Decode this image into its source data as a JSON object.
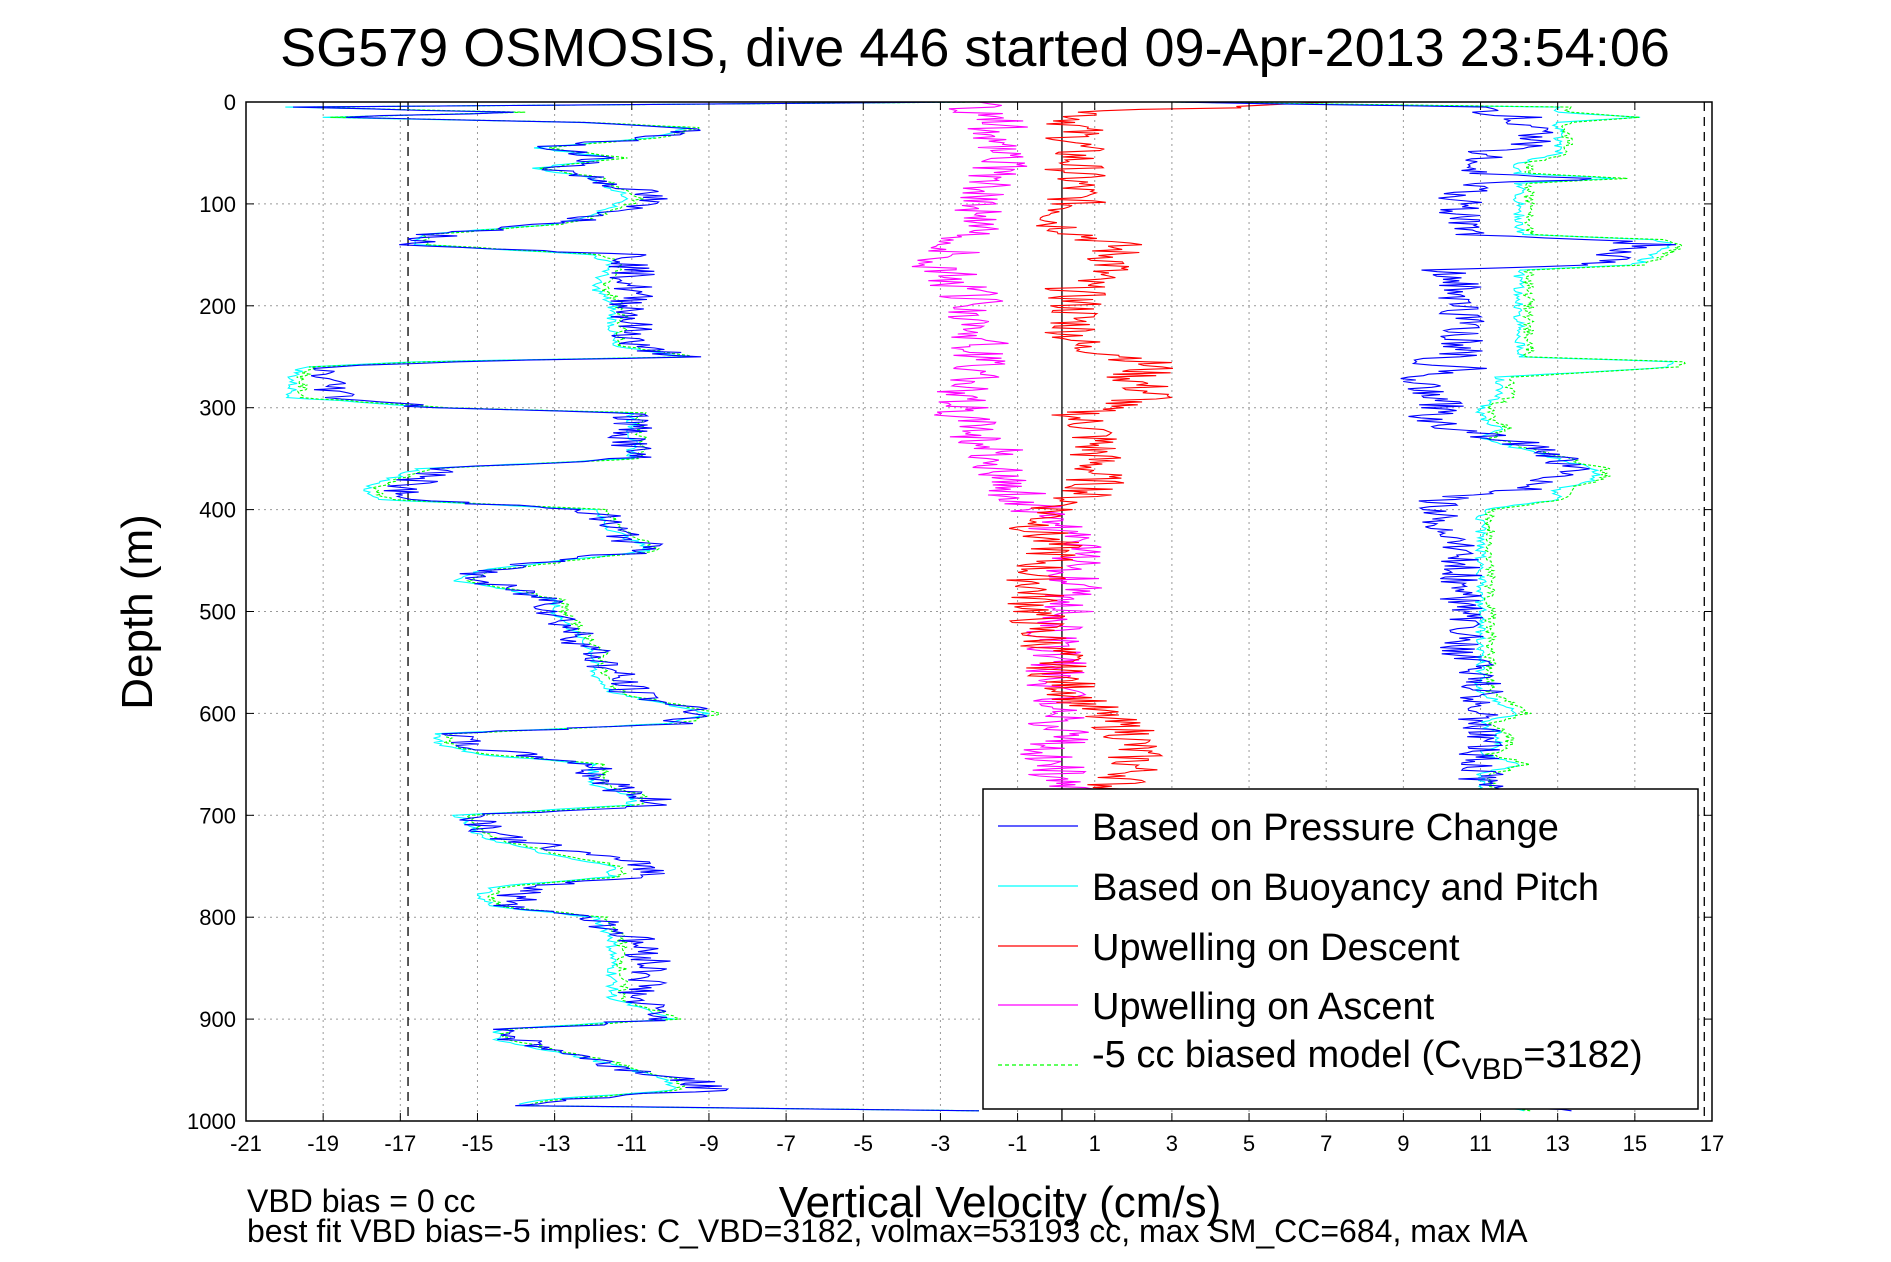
{
  "chart_data": {
    "type": "line",
    "title": "SG579 OSMOSIS, dive 446 started 09-Apr-2013 23:54:06",
    "xlabel": "Vertical Velocity (cm/s)",
    "ylabel": "Depth (m)",
    "xlim": [
      -21,
      17
    ],
    "ylim": [
      0,
      1000
    ],
    "y_reversed": true,
    "grid": true,
    "legend_position": "bottom-right",
    "xticks": [
      "-21",
      "-19",
      "-17",
      "-15",
      "-13",
      "-11",
      "-9",
      "-7",
      "-5",
      "-3",
      "-1",
      "1",
      "3",
      "5",
      "7",
      "9",
      "11",
      "13",
      "15",
      "17"
    ],
    "yticks": [
      "0",
      "100",
      "200",
      "300",
      "400",
      "500",
      "600",
      "700",
      "800",
      "900",
      "1000"
    ],
    "reference_lines": {
      "dashed_x": [
        -16.8,
        16.8
      ],
      "solid_x": [
        0.15
      ]
    },
    "colors": {
      "pressure": "#0000ff",
      "buoyancy": "#00ffff",
      "up_descent": "#ff0000",
      "up_ascent": "#ff00ff",
      "biased": "#00ff00"
    },
    "legend": {
      "pressure": "Based on Pressure Change",
      "buoyancy": "Based on Buoyancy and Pitch",
      "up_descent": "Upwelling on Descent",
      "up_ascent": "Upwelling on Ascent",
      "biased_prefix": "-5 cc biased model (C",
      "biased_sub": "VBD",
      "biased_suffix": "=3182)"
    },
    "footnote_1": "VBD bias = 0 cc",
    "footnote_2": "best fit VBD bias=-5 implies: C_VBD=3182, volmax=53193 cc, max SM_CC=684, max MA",
    "series": [
      {
        "key": "descent_model",
        "depth": [
          0,
          5,
          10,
          15,
          20,
          25,
          35,
          45,
          55,
          65,
          75,
          85,
          95,
          110,
          120,
          130,
          140,
          150,
          160,
          180,
          200,
          220,
          240,
          250,
          255,
          260,
          270,
          290,
          300,
          305,
          320,
          340,
          350,
          360,
          380,
          390,
          400,
          420,
          440,
          460,
          470,
          480,
          490,
          500,
          520,
          540,
          560,
          580,
          600,
          610,
          620,
          630,
          640,
          650,
          660,
          670,
          680,
          690,
          700,
          720,
          740,
          750,
          760,
          770,
          780,
          790,
          800,
          820,
          840,
          860,
          880,
          900,
          910,
          920,
          940,
          950,
          960,
          970,
          980,
          985,
          990
        ],
        "v": [
          -2,
          -20,
          -14,
          -19,
          -12.5,
          -9.5,
          -10.5,
          -13.5,
          -11.5,
          -13.5,
          -12,
          -11.5,
          -11,
          -12,
          -13,
          -16.5,
          -16.5,
          -12,
          -11.5,
          -12,
          -11.5,
          -11.5,
          -11.5,
          -9.5,
          -16.5,
          -19.5,
          -19.8,
          -19.8,
          -16,
          -11,
          -11,
          -11,
          -11,
          -16.5,
          -18,
          -17.5,
          -12,
          -11.5,
          -10.5,
          -15,
          -15.5,
          -14,
          -13,
          -13,
          -12.5,
          -12,
          -12,
          -11.5,
          -9,
          -10,
          -16,
          -16,
          -15,
          -12,
          -12,
          -12,
          -11,
          -11,
          -15.5,
          -15,
          -13,
          -11.5,
          -11.5,
          -14.5,
          -15,
          -14.5,
          -12,
          -11.5,
          -11.5,
          -11.5,
          -11.5,
          -10,
          -14.5,
          -14.5,
          -12,
          -11,
          -10,
          -10,
          -13.5,
          -14,
          -2
        ]
      },
      {
        "key": "ascent_model",
        "depth": [
          990,
          980,
          970,
          960,
          950,
          940,
          930,
          920,
          910,
          900,
          880,
          860,
          840,
          820,
          800,
          780,
          770,
          760,
          750,
          740,
          720,
          700,
          690,
          680,
          670,
          660,
          650,
          640,
          630,
          620,
          610,
          600,
          580,
          560,
          540,
          520,
          500,
          480,
          460,
          440,
          420,
          400,
          390,
          380,
          370,
          360,
          350,
          340,
          330,
          320,
          310,
          300,
          290,
          280,
          270,
          260,
          255,
          250,
          240,
          230,
          220,
          200,
          180,
          165,
          160,
          150,
          140,
          135,
          130,
          120,
          110,
          100,
          90,
          80,
          75,
          70,
          60,
          50,
          40,
          30,
          20,
          15,
          10,
          5,
          0
        ],
        "v": [
          12,
          11,
          11,
          11,
          11,
          11,
          11,
          11,
          11,
          11,
          11,
          11,
          11,
          11,
          11,
          11,
          11,
          11,
          11,
          11,
          11,
          11,
          11,
          11,
          11,
          11,
          12,
          11,
          11.5,
          11.5,
          11,
          12,
          11,
          11,
          11,
          11,
          11,
          11,
          11,
          11,
          11,
          11,
          13,
          13,
          14,
          14,
          13,
          12,
          11,
          11.5,
          11,
          11,
          11.5,
          11.5,
          11.5,
          16,
          16,
          12,
          12,
          12,
          12,
          12,
          12,
          12,
          15,
          15.5,
          16,
          15.5,
          12,
          12,
          12,
          12,
          12,
          12,
          14.5,
          12,
          12,
          13,
          13,
          13,
          13,
          15,
          13,
          13,
          3
        ]
      },
      {
        "key": "pressure_descent",
        "depth": [
          0,
          5,
          10,
          15,
          20,
          25,
          35,
          45,
          55,
          65,
          75,
          85,
          95,
          110,
          120,
          130,
          140,
          150,
          160,
          180,
          200,
          220,
          240,
          250,
          255,
          260,
          270,
          290,
          300,
          305,
          320,
          340,
          350,
          360,
          380,
          390,
          400,
          420,
          440,
          460,
          470,
          480,
          490,
          500,
          520,
          540,
          560,
          580,
          600,
          610,
          620,
          630,
          640,
          650,
          660,
          670,
          680,
          690,
          700,
          720,
          740,
          750,
          760,
          770,
          780,
          790,
          800,
          820,
          840,
          860,
          880,
          900,
          910,
          920,
          940,
          950,
          960,
          970,
          980,
          985,
          990
        ],
        "v": [
          -2,
          -20,
          -14,
          -19,
          -12.5,
          -9.5,
          -10.5,
          -13.5,
          -11.5,
          -13,
          -12,
          -11,
          -10.5,
          -11.5,
          -13,
          -16,
          -16.5,
          -11,
          -11,
          -11,
          -11,
          -11,
          -11,
          -9.5,
          -16,
          -19,
          -19,
          -18.5,
          -16,
          -11,
          -11,
          -11,
          -11,
          -16,
          -17,
          -17,
          -12,
          -11.5,
          -10.5,
          -15,
          -15,
          -14,
          -13,
          -13,
          -12.5,
          -12,
          -11.5,
          -11,
          -9,
          -10,
          -15.5,
          -15.5,
          -14,
          -12,
          -12,
          -11.5,
          -11,
          -10,
          -15,
          -14.5,
          -12,
          -10.5,
          -10.5,
          -13.5,
          -14,
          -14,
          -12,
          -11,
          -10.5,
          -10.5,
          -11,
          -10,
          -14,
          -14,
          -12,
          -11,
          -9.5,
          -9,
          -13,
          -13.5,
          -2
        ]
      },
      {
        "key": "pressure_ascent",
        "depth": [
          990,
          980,
          970,
          960,
          950,
          940,
          930,
          920,
          910,
          900,
          880,
          860,
          840,
          820,
          800,
          780,
          770,
          760,
          750,
          740,
          720,
          700,
          690,
          680,
          670,
          660,
          650,
          640,
          630,
          620,
          610,
          600,
          580,
          560,
          540,
          520,
          500,
          480,
          460,
          440,
          420,
          400,
          390,
          380,
          370,
          360,
          350,
          340,
          330,
          320,
          310,
          300,
          290,
          280,
          270,
          260,
          255,
          250,
          240,
          230,
          220,
          200,
          180,
          165,
          160,
          150,
          140,
          135,
          130,
          120,
          110,
          100,
          90,
          80,
          75,
          70,
          60,
          50,
          40,
          30,
          20,
          15,
          10,
          5,
          0
        ],
        "v": [
          13,
          11,
          11,
          11,
          11,
          11,
          11,
          11,
          11,
          11,
          11,
          11,
          11,
          11,
          11,
          11,
          11,
          11,
          11,
          11,
          11,
          11,
          11,
          11,
          11,
          11,
          11,
          11,
          11,
          11,
          11,
          11,
          11,
          11,
          10.5,
          10.5,
          10.5,
          10.5,
          10.5,
          10.5,
          10,
          10,
          10,
          12,
          13,
          13.5,
          13,
          12.5,
          11.5,
          10,
          9.5,
          10,
          10,
          9.5,
          9.5,
          11,
          9,
          10.5,
          10.5,
          10.5,
          10.5,
          10.5,
          10.5,
          10,
          14,
          14.5,
          15.5,
          14,
          10.5,
          10.5,
          10.5,
          10.5,
          10.5,
          11,
          14,
          11,
          11,
          11,
          12.5,
          12.5,
          12,
          12,
          11,
          11,
          3
        ]
      },
      {
        "key": "upwelling_descent",
        "depth": [
          0,
          10,
          20,
          40,
          60,
          80,
          100,
          120,
          140,
          160,
          180,
          200,
          220,
          240,
          250,
          260,
          270,
          290,
          300,
          310,
          320,
          340,
          360,
          380,
          390,
          400,
          420,
          440,
          460,
          480,
          500,
          520,
          540,
          560,
          580,
          600,
          620,
          640,
          660,
          670,
          680,
          690
        ],
        "v": [
          8,
          1,
          0.5,
          0.5,
          0.5,
          0.5,
          0.5,
          0,
          1.5,
          1.5,
          0.5,
          0.5,
          0.5,
          0.5,
          2,
          2.5,
          2,
          2.5,
          1,
          0.5,
          1,
          1,
          1,
          1,
          0.5,
          0,
          -0.5,
          0,
          -0.5,
          -0.5,
          -0.5,
          -0.5,
          0,
          0,
          0.5,
          1,
          2,
          2,
          2,
          1.5,
          1.5,
          1.5
        ]
      },
      {
        "key": "upwelling_ascent",
        "depth": [
          690,
          680,
          670,
          660,
          650,
          640,
          630,
          620,
          610,
          600,
          580,
          560,
          540,
          520,
          500,
          480,
          460,
          440,
          420,
          400,
          390,
          380,
          370,
          360,
          350,
          340,
          330,
          320,
          310,
          300,
          290,
          280,
          270,
          260,
          250,
          240,
          220,
          200,
          180,
          160,
          140,
          120,
          100,
          80,
          60,
          40,
          20,
          10,
          5,
          0
        ],
        "v": [
          0,
          0.5,
          0.5,
          0,
          0,
          -0.5,
          0,
          0.5,
          0,
          0,
          0,
          0,
          0,
          0,
          0.5,
          0.5,
          0.5,
          0.5,
          0,
          -0.5,
          -1,
          -1,
          -1.5,
          -1.5,
          -1.5,
          -1.5,
          -2,
          -2,
          -2.5,
          -2.5,
          -2.5,
          -2.5,
          -2,
          -2,
          -2,
          -2,
          -2,
          -2,
          -2.5,
          -3,
          -2.5,
          -2,
          -2,
          -1.5,
          -1.5,
          -1.5,
          -1.5,
          -2,
          -2,
          -2
        ]
      }
    ]
  }
}
